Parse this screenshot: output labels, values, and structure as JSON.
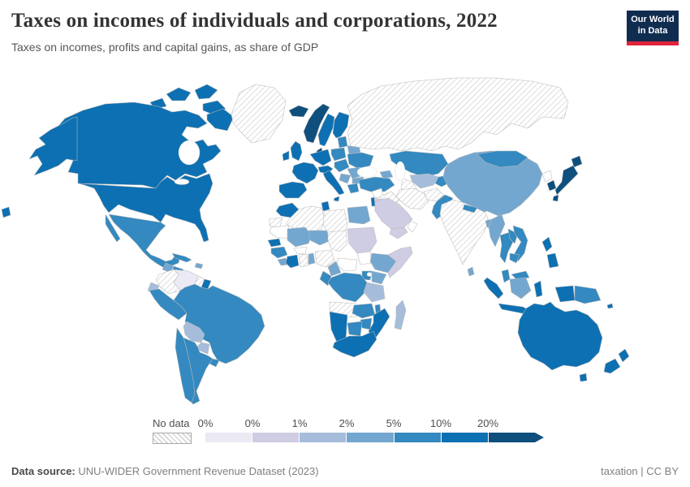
{
  "header": {
    "title": "Taxes on incomes of individuals and corporations, 2022",
    "subtitle": "Taxes on incomes, profits and capital gains, as share of GDP",
    "logo": {
      "line1": "Our World",
      "line2": "in Data",
      "bg_color": "#102d50",
      "accent_color": "#e0233c"
    }
  },
  "legend": {
    "no_data_label": "No data",
    "tick_labels": [
      "0%",
      "0%",
      "1%",
      "2%",
      "5%",
      "10%",
      "20%"
    ],
    "colors": [
      "#ebe9f3",
      "#cfcde3",
      "#a5bddb",
      "#73a7d0",
      "#3389c0",
      "#0d70b2",
      "#0e4f7d"
    ]
  },
  "footer": {
    "source_label": "Data source:",
    "source_text": "UNU-WIDER Government Revenue Dataset (2023)",
    "credit_text": "taxation | CC BY"
  },
  "chart_data": {
    "type": "choropleth",
    "title": "Taxes on incomes of individuals and corporations, 2022",
    "unit": "share of GDP (%)",
    "year": 2022,
    "legend_bucket_labels": [
      "~0%",
      "0–1%",
      "1–2%",
      "2–5%",
      "5–10%",
      "10–20%",
      ">20%"
    ],
    "legend_position": "bottom",
    "no_data_style": "diagonal-hatch",
    "countries": {
      "canada": 5,
      "united-states": 5,
      "greenland": "no-data",
      "mexico": 4,
      "guatemala": 3,
      "honduras": 4,
      "nicaragua": 5,
      "costa-rica": 4,
      "panama": 5,
      "cuba": 4,
      "hispaniola": 3,
      "colombia": "no-data",
      "venezuela": 0,
      "guyana": "no-data",
      "suriname": 5,
      "ecuador": 2,
      "peru": 4,
      "brazil": 4,
      "bolivia": 2,
      "paraguay": 2,
      "chile": 4,
      "argentina": 4,
      "uruguay": 4,
      "iceland": 6,
      "norway": 6,
      "sweden": 5,
      "finland": 5,
      "denmark": 6,
      "united-kingdom": 5,
      "ireland": 5,
      "france": 5,
      "spain": 5,
      "germany": 5,
      "italy": 5,
      "switzerland-austria": 5,
      "poland": 4,
      "czechia-hungary": 4,
      "baltic-states": 4,
      "belarus": 3,
      "ukraine": 4,
      "romania": 3,
      "balkans": 3,
      "bulgaria": 3,
      "greece": 4,
      "turkey": 4,
      "russia": "no-data",
      "kazakhstan": 4,
      "uzbekistan": 2,
      "turkmenistan": "no-data",
      "kyrgyzstan-tajikistan": 4,
      "caucasus": 3,
      "syria": "none",
      "iraq": "no-data",
      "iran": "no-data",
      "afghanistan": "no-data",
      "pakistan": 4,
      "saudi-arabia": 1,
      "yemen": 1,
      "oman": "none",
      "israel": 5,
      "jordan": 1,
      "morocco": 5,
      "western-sahara": "no-data",
      "algeria": "no-data",
      "tunisia": 5,
      "libya": "no-data",
      "egypt": 3,
      "mauritania": "none",
      "mali": 3,
      "niger": 3,
      "chad": "no-data",
      "sudan": 1,
      "senegal": 5,
      "guinea": 4,
      "sierra-leone-liberia": 3,
      "cote-divoire": 5,
      "ghana": "no-data",
      "burkina-faso": "none",
      "benin-togo": 3,
      "nigeria": "no-data",
      "cameroon": 3,
      "central-african-republic": "none",
      "south-sudan": "none",
      "ethiopia": 3,
      "somalia": 1,
      "kenya": 3,
      "uganda": 4,
      "democratic-republic-of-congo": 4,
      "congo-gabon": 4,
      "tanzania": 2,
      "angola": "no-data",
      "zambia": 4,
      "malawi": 4,
      "mozambique": 5,
      "zimbabwe": 4,
      "botswana": 4,
      "namibia": 5,
      "south-africa": 5,
      "madagascar": 2,
      "china": 3,
      "mongolia": 4,
      "north-korea": "none",
      "south-korea": 6,
      "japan": 6,
      "india": "no-data",
      "nepal": 4,
      "bangladesh": 3,
      "sri-lanka": 3,
      "myanmar": 3,
      "thailand": 4,
      "laos": 4,
      "vietnam": 4,
      "cambodia": 4,
      "malaysia": 4,
      "indonesia": 5,
      "indonesia-kalimantan": 3,
      "philippines": 5,
      "papua-new-guinea": 4,
      "solomon-islands": 5,
      "pacific-island": 5,
      "australia": 5,
      "new-zealand": 5
    }
  }
}
